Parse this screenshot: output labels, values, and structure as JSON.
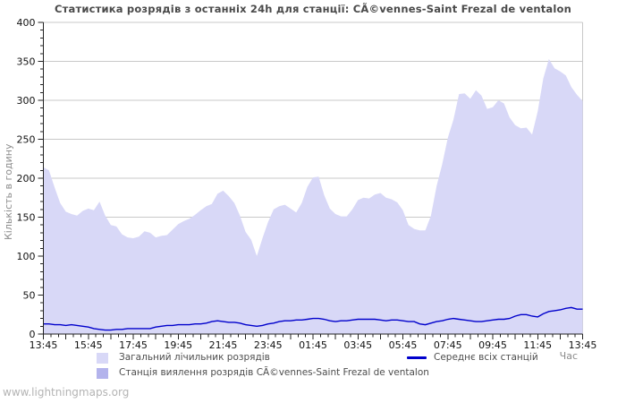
{
  "page": {
    "watermark": "www.lightningmaps.org"
  },
  "colors": {
    "background": "#ffffff",
    "grid": "#c8c8c8",
    "axis": "#222222",
    "tick_label": "#111111",
    "title": "#4a4a4a",
    "axis_title": "#8c8c8c",
    "legend_text": "#4d4d4d",
    "watermark": "#b4b4b4",
    "total_area_fill": "#d8d8f7",
    "station_area_fill": "#b3b3ec",
    "avg_line": "#0000cc"
  },
  "chart_data": {
    "type": "area",
    "title": "Статистика розрядів з останніх 24h для станції: CÃ©vennes-Saint Frezal de ventalon",
    "ylabel": "Кількість в годину",
    "xlabel": "Час",
    "ylim": [
      0,
      400
    ],
    "ytick_step": 50,
    "ytick_minor_step": 10,
    "ytick_labels": [
      0,
      50,
      100,
      150,
      200,
      250,
      300,
      350,
      400
    ],
    "x_start": "13:45",
    "x_step_minutes": 15,
    "xtick_major_minutes": 60,
    "xtick_minor_minutes": 20,
    "xlabel_interval_minutes": 120,
    "xtick_labels": [
      "13:45",
      "15:45",
      "17:45",
      "19:45",
      "21:45",
      "23:45",
      "01:45",
      "03:45",
      "05:45",
      "07:45",
      "09:45",
      "11:45",
      "13:45"
    ],
    "grid": true,
    "legend_position": "bottom",
    "series": [
      {
        "name": "Загальний лічильник розрядів",
        "type": "area",
        "color": "#d8d8f7",
        "values": [
          214,
          210,
          188,
          168,
          157,
          154,
          152,
          158,
          161,
          159,
          170,
          152,
          140,
          138,
          128,
          124,
          123,
          125,
          132,
          130,
          124,
          126,
          127,
          134,
          141,
          145,
          148,
          153,
          159,
          164,
          167,
          180,
          184,
          177,
          168,
          152,
          131,
          121,
          100,
          123,
          144,
          160,
          164,
          166,
          161,
          156,
          168,
          189,
          201,
          202,
          178,
          161,
          154,
          151,
          151,
          160,
          172,
          175,
          174,
          179,
          181,
          175,
          173,
          169,
          159,
          140,
          135,
          133,
          133,
          152,
          190,
          218,
          252,
          275,
          308,
          309,
          302,
          313,
          306,
          289,
          291,
          300,
          296,
          278,
          268,
          264,
          265,
          256,
          286,
          328,
          353,
          341,
          337,
          332,
          317,
          307,
          299
        ]
      },
      {
        "name": "Станція виялення розрядів CÃ©vennes-Saint Frezal de ventalon",
        "type": "area",
        "color": "#b3b3ec",
        "values": [
          0,
          0,
          0,
          0,
          0,
          0,
          0,
          0,
          0,
          0,
          0,
          0,
          0,
          0,
          0,
          0,
          0,
          0,
          0,
          0,
          0,
          0,
          0,
          0,
          0,
          0,
          0,
          0,
          0,
          0,
          0,
          0,
          0,
          0,
          0,
          0,
          0,
          0,
          0,
          0,
          0,
          0,
          0,
          0,
          0,
          0,
          0,
          0,
          0,
          0,
          0,
          0,
          0,
          0,
          0,
          0,
          0,
          0,
          0,
          0,
          0,
          0,
          0,
          0,
          0,
          0,
          0,
          0,
          0,
          0,
          0,
          0,
          0,
          0,
          0,
          0,
          0,
          0,
          0,
          0,
          0,
          0,
          0,
          0,
          0,
          0,
          0,
          0,
          0,
          0,
          0,
          0,
          0,
          0,
          0,
          0,
          0
        ]
      },
      {
        "name": "Середнє всіх станцій",
        "type": "line",
        "color": "#0000cc",
        "values": [
          13,
          13,
          12,
          12,
          11,
          12,
          11,
          10,
          9,
          7,
          6,
          5,
          5,
          6,
          6,
          7,
          7,
          7,
          7,
          7,
          9,
          10,
          11,
          11,
          12,
          12,
          12,
          13,
          13,
          14,
          16,
          17,
          16,
          15,
          15,
          14,
          12,
          11,
          10,
          11,
          13,
          14,
          16,
          17,
          17,
          18,
          18,
          19,
          20,
          20,
          19,
          17,
          16,
          17,
          17,
          18,
          19,
          19,
          19,
          19,
          18,
          17,
          18,
          18,
          17,
          16,
          16,
          13,
          12,
          14,
          16,
          17,
          19,
          20,
          19,
          18,
          17,
          16,
          16,
          17,
          18,
          19,
          19,
          20,
          23,
          25,
          25,
          23,
          22,
          26,
          29,
          30,
          31,
          33,
          34,
          32,
          32
        ]
      }
    ]
  }
}
